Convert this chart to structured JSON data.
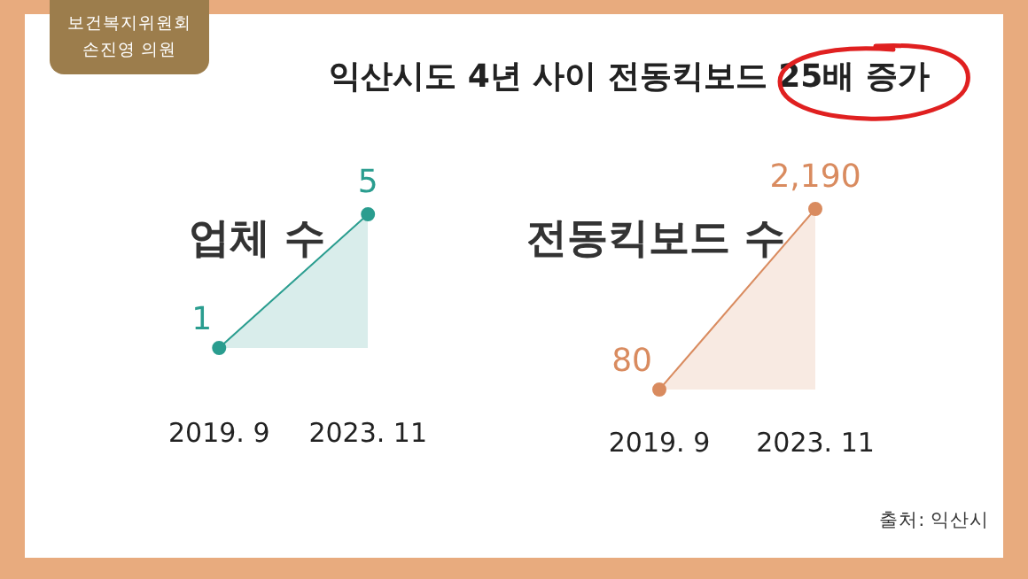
{
  "chart_data": [
    {
      "type": "other",
      "title": "익산시도 4년 사이 전동킥보드 25배 증가",
      "annotations": [
        "보건복지위원회",
        "손진영 의원",
        "출처: 익산시"
      ]
    },
    {
      "type": "area",
      "title": "업체 수",
      "categories": [
        "2019. 9",
        "2023. 11"
      ],
      "values": [
        1,
        5
      ],
      "value_labels": [
        "1",
        "5"
      ],
      "color": "#2a9d8f",
      "marker": "circle"
    },
    {
      "type": "area",
      "title": "전동킥보드 수",
      "categories": [
        "2019. 9",
        "2023. 11"
      ],
      "values": [
        80,
        2190
      ],
      "value_labels": [
        "80",
        "2,190"
      ],
      "color": "#d98b5f",
      "marker": "circle"
    }
  ]
}
